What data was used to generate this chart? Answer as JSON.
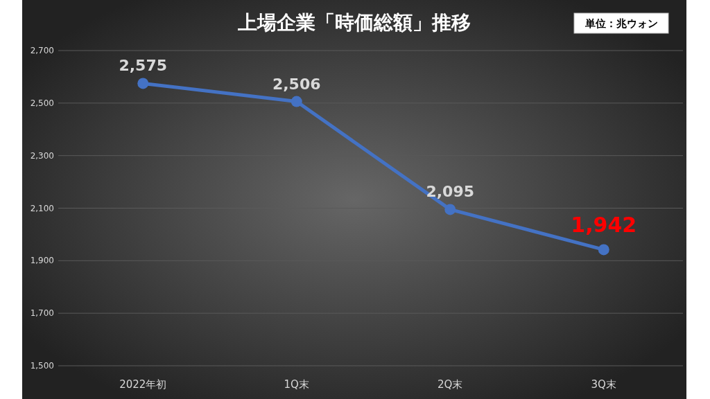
{
  "chart_data": {
    "type": "line",
    "title": "上場企業「時価総額」推移",
    "annotations": [
      "単位：兆ウォン"
    ],
    "categories": [
      "2022年初",
      "1Q末",
      "2Q末",
      "3Q末"
    ],
    "series": [
      {
        "color": "#4472c4",
        "values": [
          2575,
          2506,
          2095,
          1942
        ],
        "value_labels": [
          "2,575",
          "2,506",
          "2,095",
          "1,942"
        ]
      }
    ],
    "ylim": [
      1500,
      2700
    ],
    "yticks": [
      {
        "value": 1500,
        "label": "1,500"
      },
      {
        "value": 1700,
        "label": "1,700"
      },
      {
        "value": 1900,
        "label": "1,900"
      },
      {
        "value": 2100,
        "label": "2,100"
      },
      {
        "value": 2300,
        "label": "2,300"
      },
      {
        "value": 2500,
        "label": "2,500"
      },
      {
        "value": 2700,
        "label": "2,700"
      }
    ],
    "grid": "y",
    "marker": "circle",
    "line_style": "solid"
  }
}
